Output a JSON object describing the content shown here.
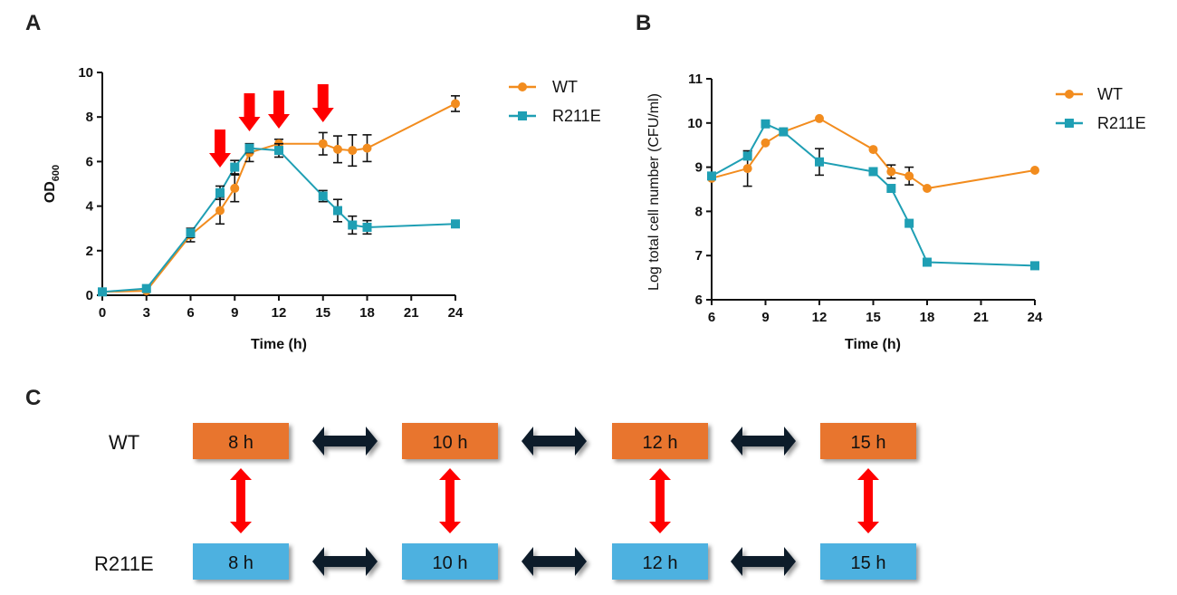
{
  "colors": {
    "wt": "#f28c1e",
    "r211e": "#1f9fb4",
    "wt_box": "#e8752f",
    "r211e_box": "#4db1e0",
    "red_arrow": "#ff0000",
    "dark_arrow": "#0a1a2a"
  },
  "panels": {
    "a": "A",
    "b": "B",
    "c": "C"
  },
  "chart_data": [
    {
      "type": "line",
      "panel": "A",
      "xlabel": "Time (h)",
      "ylabel_main": "OD",
      "ylabel_sub": "600",
      "xlim": [
        0,
        24
      ],
      "ylim": [
        0,
        10
      ],
      "xticks": [
        "0",
        "3",
        "6",
        "9",
        "12",
        "15",
        "18",
        "21",
        "24"
      ],
      "yticks": [
        "0",
        "2",
        "4",
        "6",
        "8",
        "10"
      ],
      "series": [
        {
          "name": "WT",
          "x": [
            0,
            3,
            6,
            8,
            9,
            10,
            12,
            15,
            16,
            17,
            18,
            24
          ],
          "values": [
            0.15,
            0.2,
            2.7,
            3.8,
            4.8,
            6.4,
            6.8,
            6.8,
            6.55,
            6.5,
            6.6,
            8.6
          ],
          "errors": [
            0.05,
            0.05,
            0.3,
            0.6,
            0.6,
            0.4,
            0.2,
            0.5,
            0.6,
            0.7,
            0.6,
            0.35
          ]
        },
        {
          "name": "R211E",
          "x": [
            0,
            3,
            6,
            8,
            9,
            10,
            12,
            15,
            16,
            17,
            18,
            24
          ],
          "values": [
            0.15,
            0.3,
            2.8,
            4.6,
            5.75,
            6.6,
            6.5,
            4.45,
            3.8,
            3.15,
            3.05,
            3.2
          ],
          "errors": [
            0.05,
            0.05,
            0.2,
            0.3,
            0.3,
            0.2,
            0.3,
            0.25,
            0.5,
            0.4,
            0.3,
            0.1
          ]
        }
      ],
      "annotations": {
        "type": "red downward arrows",
        "x": [
          8,
          10,
          12,
          15
        ]
      }
    },
    {
      "type": "line",
      "panel": "B",
      "xlabel": "Time (h)",
      "ylabel": "Log total cell number (CFU/ml)",
      "xlim": [
        6,
        24
      ],
      "ylim": [
        6,
        11
      ],
      "xticks": [
        "6",
        "9",
        "12",
        "15",
        "18",
        "21",
        "24"
      ],
      "yticks": [
        "6",
        "7",
        "8",
        "9",
        "10",
        "11"
      ],
      "series": [
        {
          "name": "WT",
          "x": [
            6,
            8,
            9,
            10,
            12,
            15,
            16,
            17,
            18,
            24
          ],
          "values": [
            8.75,
            8.97,
            9.55,
            9.8,
            10.1,
            9.4,
            8.9,
            8.8,
            8.52,
            8.93
          ],
          "errors": [
            0.05,
            0.4,
            0.05,
            0.05,
            0.05,
            0.05,
            0.15,
            0.2,
            0.05,
            0.05
          ]
        },
        {
          "name": "R211E",
          "x": [
            6,
            8,
            9,
            10,
            12,
            15,
            16,
            17,
            18,
            24
          ],
          "values": [
            8.8,
            9.25,
            9.98,
            9.8,
            9.12,
            8.9,
            8.52,
            7.73,
            6.85,
            6.77
          ],
          "errors": [
            0.05,
            0.05,
            0.05,
            0.05,
            0.3,
            0.05,
            0.05,
            0.05,
            0.05,
            0.05
          ]
        }
      ]
    }
  ],
  "diagram_c": {
    "row_labels": [
      "WT",
      "R211E"
    ],
    "wt_boxes": [
      "8 h",
      "10 h",
      "12 h",
      "15 h"
    ],
    "r211e_boxes": [
      "8 h",
      "10 h",
      "12 h",
      "15 h"
    ]
  }
}
